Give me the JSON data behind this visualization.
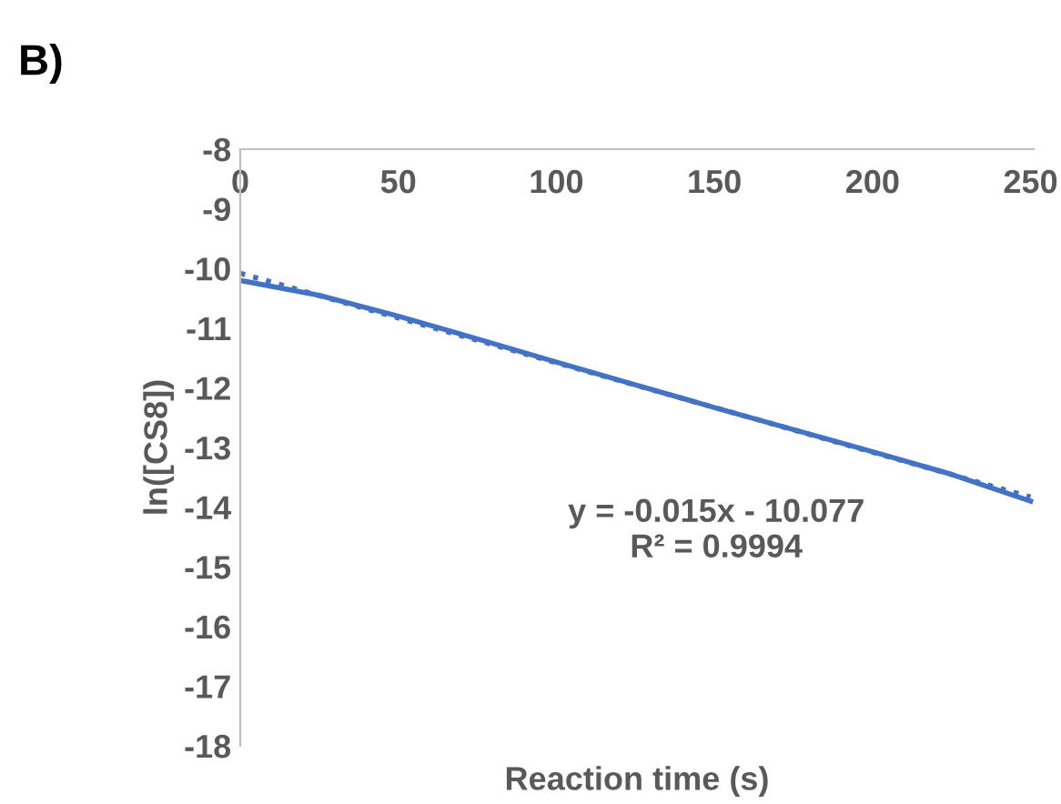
{
  "chart_data": {
    "type": "line",
    "title": "B)",
    "xlabel": "Reaction time (s)",
    "ylabel": "ln([CS8])",
    "series": [
      {
        "color": "#4472c4",
        "x": [
          0,
          25,
          50,
          75,
          100,
          125,
          150,
          175,
          200,
          225,
          250
        ],
        "values": [
          -10.2,
          -10.45,
          -10.8,
          -11.18,
          -11.57,
          -11.95,
          -12.33,
          -12.7,
          -13.07,
          -13.45,
          -13.9
        ],
        "line_style": "solid"
      },
      {
        "color": "#4472c4",
        "x": [
          0,
          250
        ],
        "values": [
          -10.08,
          -13.83
        ],
        "line_style": "dotted"
      }
    ],
    "annotations": [
      "y = -0.015x - 10.077\nR² = 0.9994"
    ],
    "xlim": [
      0,
      251
    ],
    "ylim": [
      -18,
      -8
    ],
    "xticks": [
      0,
      50,
      100,
      150,
      200,
      250
    ],
    "yticks": [
      -18,
      -17,
      -16,
      -15,
      -14,
      -13,
      -12,
      -11,
      -10,
      -9,
      -8
    ],
    "grid": false,
    "marker": "none"
  }
}
